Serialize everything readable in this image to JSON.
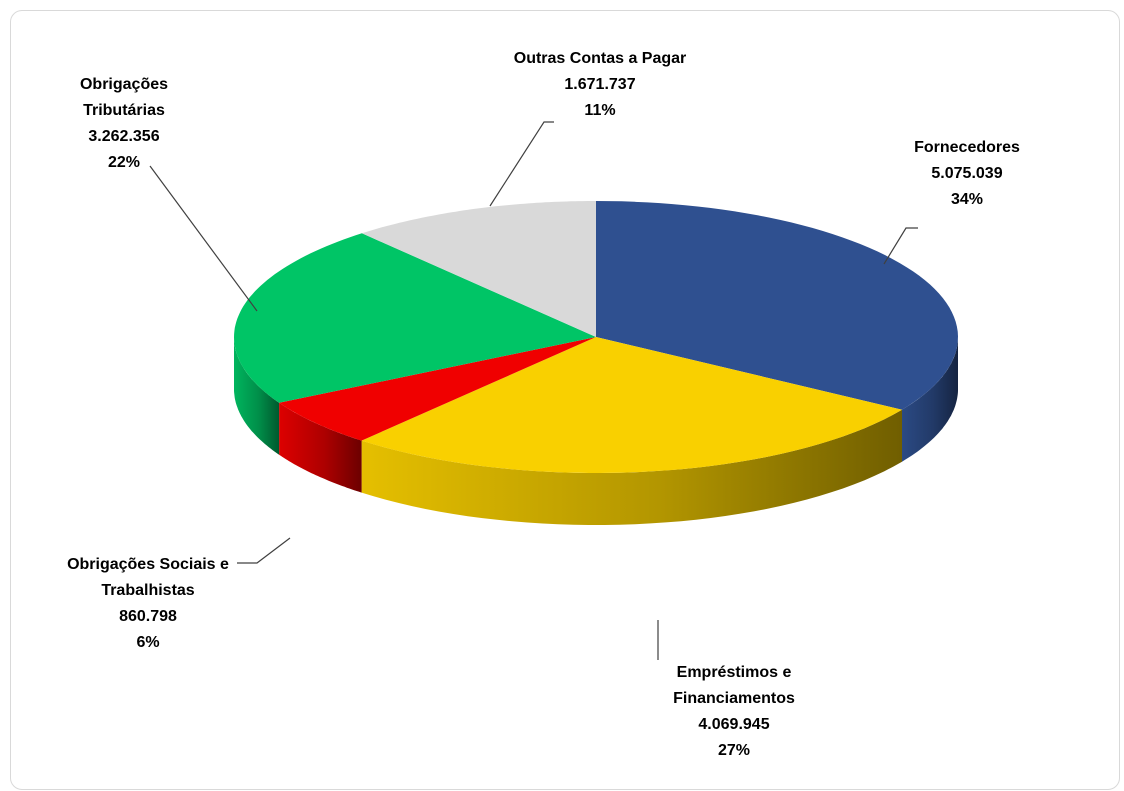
{
  "chart_data": {
    "type": "pie",
    "title": "",
    "slices": [
      {
        "name_lines": [
          "Fornecedores"
        ],
        "value_text": "5.075.039",
        "percent_text": "34%",
        "value": 5075039,
        "color": "#2F5090"
      },
      {
        "name_lines": [
          "Empréstimos e",
          "Financiamentos"
        ],
        "value_text": "4.069.945",
        "percent_text": "27%",
        "value": 4069945,
        "color": "#F9D000"
      },
      {
        "name_lines": [
          "Obrigações Sociais e",
          "Trabalhistas"
        ],
        "value_text": "860.798",
        "percent_text": "6%",
        "value": 860798,
        "color": "#F00000"
      },
      {
        "name_lines": [
          "Obrigações",
          "Tributárias"
        ],
        "value_text": "3.262.356",
        "percent_text": "22%",
        "value": 3262356,
        "color": "#00C566"
      },
      {
        "name_lines": [
          "Outras Contas a Pagar"
        ],
        "value_text": "1.671.737",
        "percent_text": "11%",
        "value": 1671737,
        "color": "#D9D9D9"
      }
    ],
    "legend": "none",
    "style": "3d-pie"
  }
}
